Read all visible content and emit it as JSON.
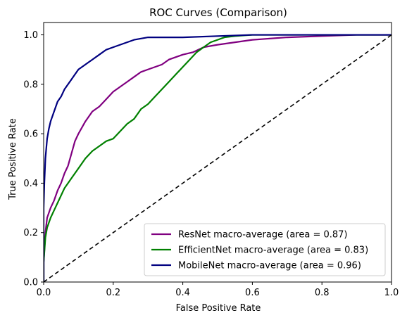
{
  "chart_data": {
    "type": "line",
    "title": "ROC Curves (Comparison)",
    "xlabel": "False Positive Rate",
    "ylabel": "True Positive Rate",
    "xlim": [
      0.0,
      1.0
    ],
    "ylim": [
      0.0,
      1.05
    ],
    "xticks": [
      "0.0",
      "0.2",
      "0.4",
      "0.6",
      "0.8",
      "1.0"
    ],
    "yticks": [
      "0.0",
      "0.2",
      "0.4",
      "0.6",
      "0.8",
      "1.0"
    ],
    "grid": false,
    "legend_position": "lower-right",
    "series": [
      {
        "name": "ResNet macro-average (area = 0.87)",
        "color": "#800080",
        "x": [
          0,
          0.0,
          0.005,
          0.01,
          0.02,
          0.03,
          0.04,
          0.05,
          0.06,
          0.07,
          0.08,
          0.09,
          0.1,
          0.12,
          0.14,
          0.16,
          0.18,
          0.2,
          0.22,
          0.24,
          0.26,
          0.28,
          0.3,
          0.32,
          0.34,
          0.36,
          0.38,
          0.4,
          0.43,
          0.46,
          0.5,
          0.55,
          0.6,
          0.7,
          0.8,
          0.9,
          1.0
        ],
        "y": [
          0,
          0.08,
          0.2,
          0.26,
          0.3,
          0.33,
          0.37,
          0.4,
          0.44,
          0.47,
          0.52,
          0.57,
          0.6,
          0.65,
          0.69,
          0.71,
          0.74,
          0.77,
          0.79,
          0.81,
          0.83,
          0.85,
          0.86,
          0.87,
          0.88,
          0.9,
          0.91,
          0.92,
          0.93,
          0.95,
          0.96,
          0.97,
          0.98,
          0.99,
          0.995,
          1.0,
          1.0
        ]
      },
      {
        "name": "EfficientNet macro-average (area = 0.83)",
        "color": "#008000",
        "x": [
          0,
          0.0,
          0.005,
          0.01,
          0.02,
          0.03,
          0.04,
          0.05,
          0.06,
          0.08,
          0.1,
          0.12,
          0.14,
          0.16,
          0.18,
          0.2,
          0.22,
          0.24,
          0.26,
          0.28,
          0.3,
          0.32,
          0.34,
          0.36,
          0.38,
          0.4,
          0.42,
          0.44,
          0.46,
          0.48,
          0.5,
          0.52,
          0.55,
          0.6,
          0.7,
          0.8,
          1.0
        ],
        "y": [
          0,
          0.08,
          0.18,
          0.22,
          0.26,
          0.29,
          0.32,
          0.35,
          0.38,
          0.42,
          0.46,
          0.5,
          0.53,
          0.55,
          0.57,
          0.58,
          0.61,
          0.64,
          0.66,
          0.7,
          0.72,
          0.75,
          0.78,
          0.81,
          0.84,
          0.87,
          0.9,
          0.93,
          0.95,
          0.97,
          0.98,
          0.99,
          0.995,
          1.0,
          1.0,
          1.0,
          1.0
        ]
      },
      {
        "name": "MobileNet macro-average (area = 0.96)",
        "color": "#000080",
        "x": [
          0,
          0.0,
          0.002,
          0.005,
          0.01,
          0.015,
          0.02,
          0.03,
          0.04,
          0.05,
          0.06,
          0.07,
          0.08,
          0.09,
          0.1,
          0.12,
          0.14,
          0.16,
          0.18,
          0.2,
          0.22,
          0.24,
          0.26,
          0.28,
          0.3,
          0.35,
          0.4,
          0.5,
          0.6,
          0.8,
          1.0
        ],
        "y": [
          0,
          0.3,
          0.4,
          0.5,
          0.58,
          0.62,
          0.65,
          0.69,
          0.73,
          0.75,
          0.78,
          0.8,
          0.82,
          0.84,
          0.86,
          0.88,
          0.9,
          0.92,
          0.94,
          0.95,
          0.96,
          0.97,
          0.98,
          0.985,
          0.99,
          0.99,
          0.99,
          0.995,
          1.0,
          1.0,
          1.0
        ]
      },
      {
        "name": "",
        "color": "#000000",
        "dashed": true,
        "x": [
          0.0,
          1.0
        ],
        "y": [
          0.0,
          1.0
        ]
      }
    ]
  }
}
